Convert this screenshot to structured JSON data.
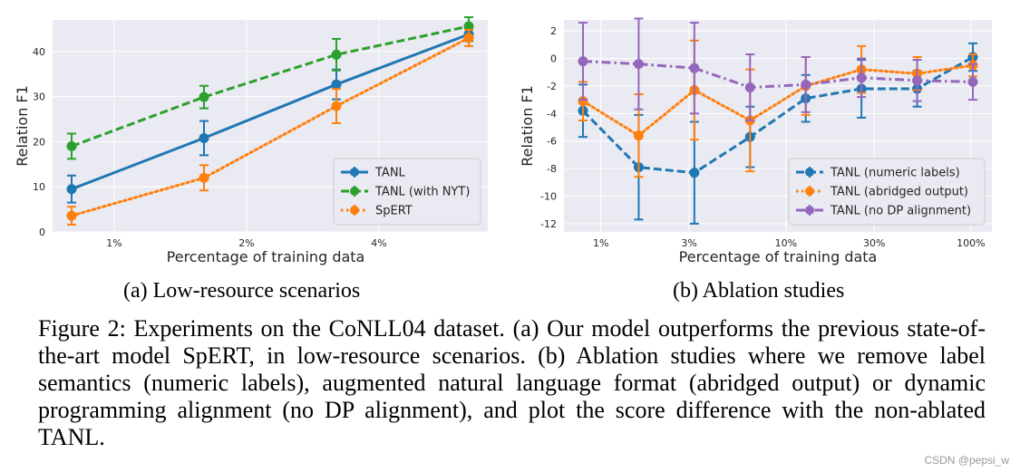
{
  "chart_data": [
    {
      "type": "line",
      "xlabel": "Percentage of training data",
      "ylabel": "Relation F1",
      "categories": [
        "0.8%",
        "1.6%",
        "3.2%",
        "6.4%"
      ],
      "tick_labels": [
        "1%",
        "2%",
        "4%"
      ],
      "y_ticks": [
        0,
        10,
        20,
        30,
        40
      ],
      "ylim": [
        0,
        47
      ],
      "grid": true,
      "legend": "bottom-right",
      "series": [
        {
          "name": "TANL",
          "color": "#1f77b4",
          "dash": "solid",
          "values": [
            9.5,
            20.8,
            32.7,
            43.8
          ],
          "err": [
            3.0,
            3.8,
            3.3,
            1.5
          ]
        },
        {
          "name": "TANL (with NYT)",
          "color": "#2ca02c",
          "dash": "dashed",
          "values": [
            19.0,
            29.9,
            39.3,
            45.6
          ],
          "err": [
            2.8,
            2.5,
            3.5,
            2.0
          ]
        },
        {
          "name": "SpERT",
          "color": "#ff7f0e",
          "dash": "dotted",
          "values": [
            3.6,
            12.0,
            27.9,
            43.0
          ],
          "err": [
            2.0,
            2.8,
            3.8,
            1.8
          ]
        }
      ]
    },
    {
      "type": "line",
      "xlabel": "Percentage of training data",
      "ylabel": "Relation F1",
      "categories": [
        "0.8%",
        "1.6%",
        "3.2%",
        "6.4%",
        "12.8%",
        "25.6%",
        "51.2%",
        "100%"
      ],
      "tick_labels": [
        "1%",
        "3%",
        "10%",
        "30%",
        "100%"
      ],
      "y_ticks": [
        2,
        0,
        -2,
        -4,
        -6,
        -8,
        -10,
        -12
      ],
      "ylim": [
        -12.6,
        2.8
      ],
      "grid": true,
      "legend": "bottom-right",
      "series": [
        {
          "name": "TANL (numeric labels)",
          "color": "#1f77b4",
          "dash": "dashed",
          "values": [
            -3.8,
            -7.9,
            -8.3,
            -5.7,
            -2.9,
            -2.2,
            -2.2,
            0.1
          ],
          "err": [
            1.9,
            3.8,
            3.7,
            2.2,
            1.7,
            2.1,
            1.3,
            1.0
          ]
        },
        {
          "name": "TANL (abridged output)",
          "color": "#ff7f0e",
          "dash": "dotted",
          "values": [
            -3.1,
            -5.6,
            -2.3,
            -4.5,
            -2.0,
            -0.8,
            -1.1,
            -0.5
          ],
          "err": [
            1.4,
            3.0,
            3.6,
            3.7,
            2.1,
            1.7,
            1.2,
            0.8
          ]
        },
        {
          "name": "TANL (no DP alignment)",
          "color": "#9467bd",
          "dash": "dashdot",
          "values": [
            -0.2,
            -0.4,
            -0.7,
            -2.1,
            -1.9,
            -1.4,
            -1.6,
            -1.7
          ],
          "err": [
            2.8,
            3.3,
            3.3,
            2.4,
            2.0,
            1.4,
            1.5,
            1.3
          ]
        }
      ]
    }
  ],
  "subcaptions": {
    "a": "(a) Low-resource scenarios",
    "b": "(b) Ablation studies"
  },
  "caption": "Figure 2: Experiments on the CoNLL04 dataset. (a) Our model outperforms the previous state-of-the-art model SpERT, in low-resource scenarios. (b) Ablation studies where we remove label semantics (numeric labels), augmented natural language format (abridged output) or dynamic programming alignment (no DP alignment), and plot the score difference with the non-ablated TANL.",
  "watermark": "CSDN @pepsi_w",
  "colors": {
    "plot_bg": "#eaeaf2",
    "grid": "#ffffff"
  }
}
